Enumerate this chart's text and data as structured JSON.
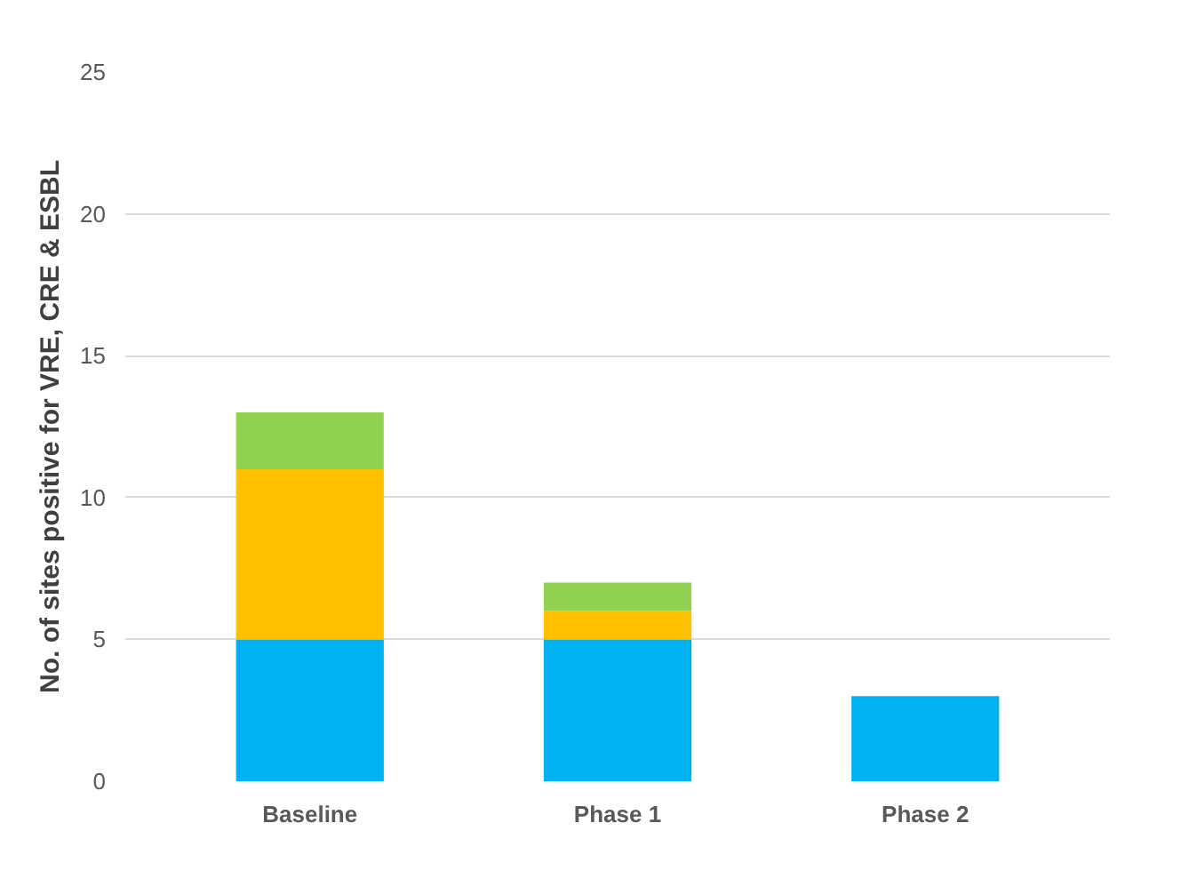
{
  "chart_data": {
    "type": "bar",
    "ylabel": "No. of sites positive for VRE, CRE & ESBL",
    "categories": [
      "Baseline",
      "Phase 1",
      "Phase 2"
    ],
    "stacked": true,
    "series": [
      {
        "color": "#00b0f0",
        "values": [
          5,
          5,
          3
        ]
      },
      {
        "color": "#ffc000",
        "values": [
          6,
          1,
          0
        ]
      },
      {
        "color": "#92d050",
        "values": [
          2,
          1,
          0
        ]
      }
    ],
    "ylim": [
      0,
      25
    ],
    "yticks": [
      0,
      5,
      10,
      15,
      20,
      25
    ],
    "grid": "y"
  }
}
